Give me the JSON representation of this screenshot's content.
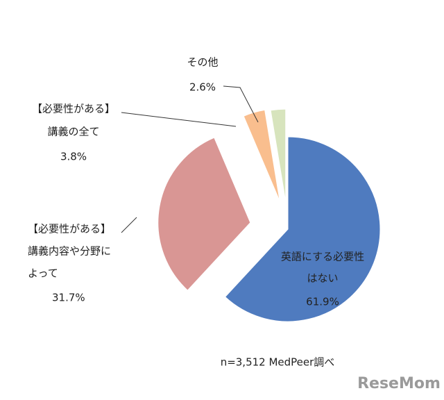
{
  "chart_data": {
    "type": "pie",
    "categories": [
      [
        "英語にする必要性",
        "はない"
      ],
      [
        "【必要性がある】",
        "講義内容や分野に",
        "よって"
      ],
      [
        "【必要性がある】",
        "講義の全て"
      ],
      [
        "その他"
      ]
    ],
    "values": [
      61.9,
      31.7,
      3.8,
      2.6
    ],
    "value_labels": [
      "61.9%",
      "31.7%",
      "3.8%",
      "2.6%"
    ],
    "colors": [
      "#4f7bbf",
      "#d99694",
      "#f9be8e",
      "#d7e4bd"
    ],
    "note": "n=3,512  MedPeer調べ",
    "watermark": "ReseMom"
  }
}
